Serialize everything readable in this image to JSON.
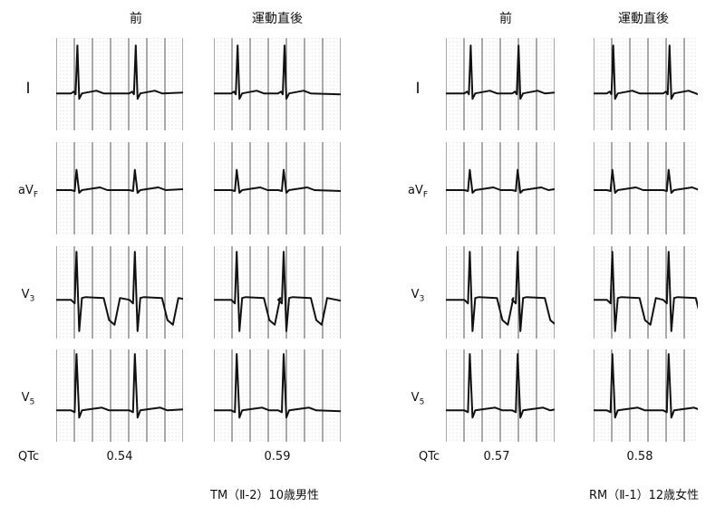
{
  "panels": [
    {
      "headers": [
        "前",
        "運動直後"
      ],
      "leads": [
        "Ⅰ",
        "aVF",
        "V3",
        "V5"
      ],
      "qtc_label": "QTc",
      "qtc_values": [
        "0.54",
        "0.59"
      ],
      "caption": "TM（Ⅱ-2）10歳男性"
    },
    {
      "headers": [
        "前",
        "運動直後"
      ],
      "leads": [
        "Ⅰ",
        "aVF",
        "V3",
        "V5"
      ],
      "qtc_label": "QTc",
      "qtc_values": [
        "0.57",
        "0.58"
      ],
      "caption": "RM（Ⅱ-1）12歳女性"
    }
  ]
}
